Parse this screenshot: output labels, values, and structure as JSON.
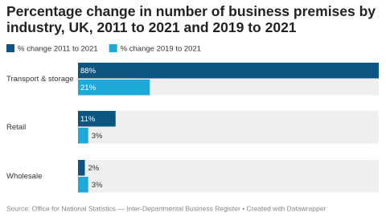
{
  "chart_data": {
    "type": "bar",
    "orientation": "horizontal",
    "title": "Percentage change in number of business premises by industry, UK, 2011 to 2021 and 2019 to 2021",
    "categories": [
      "Transport & storage",
      "Retail",
      "Wholesale"
    ],
    "series": [
      {
        "name": "% change 2011 to 2021",
        "color": "#0b5681",
        "values": [
          88,
          11,
          2
        ],
        "value_labels": [
          "88%",
          "11%",
          "2%"
        ]
      },
      {
        "name": "% change 2019 to 2021",
        "color": "#1da9d9",
        "values": [
          21,
          3,
          3
        ],
        "value_labels": [
          "21%",
          "3%",
          "3%"
        ]
      }
    ],
    "source": "Source: Office for National Statistics — Inter-Departmental Business Register • Created with Datawrapper"
  }
}
